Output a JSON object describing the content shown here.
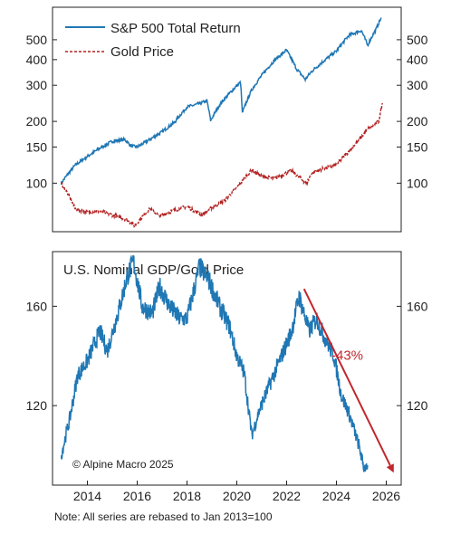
{
  "chart_data": [
    {
      "type": "line",
      "scale": "log",
      "series": [
        {
          "name": "S&P 500 Total Return",
          "color": "#1f77b4",
          "style": "solid",
          "points": [
            [
              2012.95,
              100
            ],
            [
              2013.5,
              122
            ],
            [
              2014.0,
              135
            ],
            [
              2014.5,
              148
            ],
            [
              2015.0,
              160
            ],
            [
              2015.5,
              163
            ],
            [
              2015.75,
              152
            ],
            [
              2016.0,
              150
            ],
            [
              2016.5,
              163
            ],
            [
              2017.0,
              178
            ],
            [
              2017.5,
              198
            ],
            [
              2018.0,
              235
            ],
            [
              2018.5,
              244
            ],
            [
              2018.8,
              252
            ],
            [
              2018.95,
              202
            ],
            [
              2019.3,
              240
            ],
            [
              2019.9,
              290
            ],
            [
              2020.15,
              310
            ],
            [
              2020.22,
              220
            ],
            [
              2020.6,
              285
            ],
            [
              2021.0,
              335
            ],
            [
              2021.5,
              395
            ],
            [
              2021.99,
              445
            ],
            [
              2022.4,
              360
            ],
            [
              2022.75,
              320
            ],
            [
              2023.0,
              350
            ],
            [
              2023.5,
              395
            ],
            [
              2024.0,
              440
            ],
            [
              2024.5,
              525
            ],
            [
              2025.0,
              555
            ],
            [
              2025.25,
              470
            ],
            [
              2025.6,
              565
            ],
            [
              2025.8,
              640
            ]
          ]
        },
        {
          "name": "Gold Price",
          "color": "#b22222",
          "style": "dashed",
          "points": [
            [
              2012.95,
              100
            ],
            [
              2013.3,
              85
            ],
            [
              2013.5,
              75
            ],
            [
              2014.0,
              72
            ],
            [
              2014.5,
              73
            ],
            [
              2015.0,
              70
            ],
            [
              2015.5,
              67
            ],
            [
              2015.9,
              62
            ],
            [
              2016.5,
              75
            ],
            [
              2016.9,
              69
            ],
            [
              2017.5,
              74
            ],
            [
              2018.0,
              77
            ],
            [
              2018.6,
              70
            ],
            [
              2019.0,
              76
            ],
            [
              2019.5,
              82
            ],
            [
              2020.0,
              95
            ],
            [
              2020.6,
              116
            ],
            [
              2021.0,
              108
            ],
            [
              2021.5,
              105
            ],
            [
              2022.2,
              115
            ],
            [
              2022.8,
              99
            ],
            [
              2023.0,
              112
            ],
            [
              2023.5,
              118
            ],
            [
              2024.0,
              123
            ],
            [
              2024.5,
              143
            ],
            [
              2024.9,
              162
            ],
            [
              2025.3,
              185
            ],
            [
              2025.7,
              200
            ],
            [
              2025.85,
              245
            ]
          ]
        }
      ],
      "xlim": [
        2012.6,
        2026.6
      ],
      "ylim": [
        58,
        720
      ],
      "yticks": [
        100,
        150,
        200,
        300,
        400,
        500
      ],
      "grid": false,
      "legend": "top-left"
    },
    {
      "type": "line",
      "title": "U.S. Nominal GDP/Gold Price",
      "series": [
        {
          "color": "#1f77b4",
          "points": [
            [
              2012.95,
              100
            ],
            [
              2013.3,
              115
            ],
            [
              2013.6,
              132
            ],
            [
              2014.0,
              138
            ],
            [
              2014.5,
              150
            ],
            [
              2014.8,
              142
            ],
            [
              2015.3,
              160
            ],
            [
              2015.6,
              172
            ],
            [
              2015.85,
              178
            ],
            [
              2016.2,
              160
            ],
            [
              2016.6,
              157
            ],
            [
              2016.9,
              168
            ],
            [
              2017.3,
              160
            ],
            [
              2017.7,
              155
            ],
            [
              2018.0,
              155
            ],
            [
              2018.5,
              176
            ],
            [
              2018.9,
              170
            ],
            [
              2019.3,
              160
            ],
            [
              2019.7,
              152
            ],
            [
              2020.0,
              140
            ],
            [
              2020.3,
              133
            ],
            [
              2020.6,
              108
            ],
            [
              2020.9,
              118
            ],
            [
              2021.3,
              128
            ],
            [
              2021.8,
              140
            ],
            [
              2022.2,
              150
            ],
            [
              2022.5,
              164
            ],
            [
              2022.9,
              150
            ],
            [
              2023.2,
              155
            ],
            [
              2023.5,
              148
            ],
            [
              2023.9,
              140
            ],
            [
              2024.2,
              124
            ],
            [
              2024.5,
              117
            ],
            [
              2024.9,
              104
            ],
            [
              2025.1,
              95
            ],
            [
              2025.25,
              96
            ]
          ]
        }
      ],
      "xlim": [
        2012.6,
        2026.6
      ],
      "ylim": [
        88,
        182
      ],
      "yticks": [
        120,
        160
      ],
      "xticks": [
        2014,
        2016,
        2018,
        2020,
        2022,
        2024,
        2026
      ],
      "grid": false,
      "annotation": {
        "text": "-43%",
        "color": "#c0272d",
        "arrow_from": [
          2022.7,
          167
        ],
        "arrow_to": [
          2026.3,
          93
        ]
      },
      "credit": "© Alpine Macro 2025"
    }
  ],
  "note": "Note: All series are rebased to Jan 2013=100"
}
